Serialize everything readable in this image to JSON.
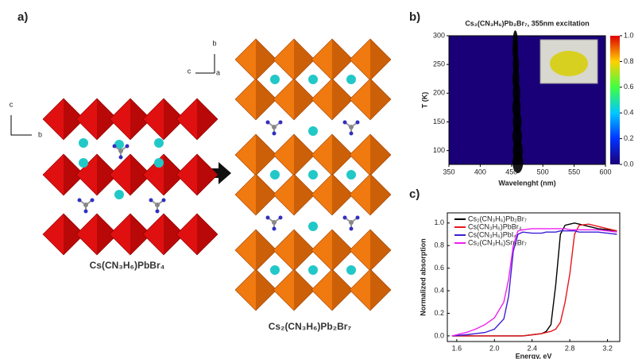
{
  "panels": {
    "a": "a)",
    "b": "b)",
    "c": "c)"
  },
  "structure": {
    "axis_c": "c",
    "axis_b": "b",
    "axis_a": "a",
    "left_label": "Cs(CN₃H₆)PbBr₄",
    "right_label": "Cs₂(CN₃H₆)Pb₂Br₇"
  },
  "chart_data": [
    {
      "type": "heatmap",
      "title": "Cs₂(CN₃H₆)Pb₂Br₇, 355nm excitation",
      "x_label": "Wavelenght (nm)",
      "y_label": "T (K)",
      "xlim": [
        350,
        600
      ],
      "xticks": [
        350,
        400,
        450,
        500,
        550,
        600
      ],
      "ylim": [
        76,
        300
      ],
      "yticks": [
        100,
        150,
        200,
        250,
        300
      ],
      "y": [
        80,
        100,
        125,
        150,
        175,
        200,
        225,
        250,
        275,
        290
      ],
      "peak": [
        460,
        460,
        459,
        459,
        458,
        458,
        457,
        457,
        456,
        456
      ],
      "fwhm": [
        17,
        16,
        15,
        14,
        13,
        12,
        11,
        10,
        9,
        8
      ],
      "values": [
        1.0,
        0.95,
        0.8,
        0.6,
        0.45,
        0.35,
        0.25,
        0.18,
        0.12,
        0.08
      ],
      "colorbar_lim": [
        0,
        1
      ],
      "colorbar_ticks": [
        {
          "value": 0,
          "label": "0.0"
        },
        {
          "value": 0.2,
          "label": "0.2"
        },
        {
          "value": 0.4,
          "label": "0.4"
        },
        {
          "value": 0.6,
          "label": "0.6"
        },
        {
          "value": 0.8,
          "label": "0.8"
        },
        {
          "value": 1,
          "label": "1.0"
        }
      ]
    },
    {
      "type": "line",
      "x_label": "Energy, eV",
      "y_label": "Normalized absorption",
      "xlim": [
        1.5,
        3.33
      ],
      "xticks": [
        1.6,
        {
          "value": 2,
          "label": "2.0"
        },
        2.4,
        2.8,
        3.2
      ],
      "ylim": [
        -0.05,
        1.09
      ],
      "yticks": [
        {
          "value": 0,
          "label": "0.0"
        },
        0.2,
        0.4,
        0.6,
        0.8,
        {
          "value": 1,
          "label": "1.0"
        }
      ],
      "x": [
        1.55,
        1.7,
        1.8,
        1.9,
        2.0,
        2.1,
        2.15,
        2.2,
        2.25,
        2.3,
        2.4,
        2.5,
        2.55,
        2.6,
        2.65,
        2.7,
        2.75,
        2.8,
        2.85,
        2.9,
        3.0,
        3.1,
        3.2,
        3.3
      ],
      "series": [
        {
          "name": "Cs₂(CN₃H₆)Pb₂Br₇",
          "color": "#000000",
          "values": [
            0,
            0,
            0,
            0,
            0,
            0,
            0,
            0,
            0,
            0,
            0.01,
            0.02,
            0.04,
            0.1,
            0.45,
            0.9,
            0.98,
            0.99,
            1.0,
            0.99,
            0.97,
            0.95,
            0.94,
            0.93
          ]
        },
        {
          "name": "Cs(CN₃H₆)PbBr₄",
          "color": "#e8151b",
          "values": [
            0,
            0,
            0,
            0,
            0,
            0,
            0,
            0,
            0,
            0,
            0.01,
            0.02,
            0.03,
            0.04,
            0.06,
            0.12,
            0.3,
            0.55,
            0.9,
            0.98,
            0.99,
            0.97,
            0.95,
            0.93
          ]
        },
        {
          "name": "Cs(CN₃H₆)PbI₄",
          "color": "#3a1fd6",
          "values": [
            0,
            0.01,
            0.02,
            0.03,
            0.06,
            0.15,
            0.35,
            0.75,
            0.9,
            0.92,
            0.91,
            0.91,
            0.92,
            0.92,
            0.92,
            0.93,
            0.93,
            0.93,
            0.93,
            0.92,
            0.92,
            0.92,
            0.91,
            0.9
          ]
        },
        {
          "name": "Cs₂(CN₃H₆)Sn₂Br₇",
          "color": "#f01ef0",
          "values": [
            0,
            0.03,
            0.06,
            0.1,
            0.16,
            0.3,
            0.5,
            0.8,
            0.93,
            0.94,
            0.95,
            0.95,
            0.95,
            0.95,
            0.95,
            0.95,
            0.95,
            0.94,
            0.94,
            0.94,
            0.94,
            0.94,
            0.93,
            0.92
          ]
        }
      ]
    }
  ]
}
